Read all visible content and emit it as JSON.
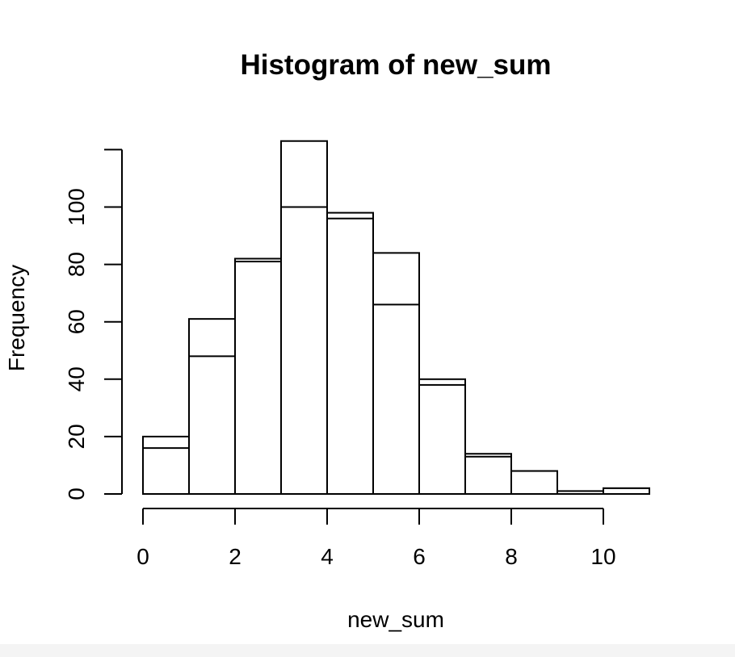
{
  "chart_data": {
    "type": "bar",
    "title": "Histogram of new_sum",
    "xlabel": "new_sum",
    "ylabel": "Frequency",
    "bin_edges": [
      0,
      1,
      2,
      3,
      4,
      5,
      6,
      7,
      8,
      9,
      10,
      11
    ],
    "xlim": [
      0,
      11
    ],
    "ylim": [
      0,
      123
    ],
    "x_ticks": [
      "0",
      "2",
      "4",
      "6",
      "8",
      "10"
    ],
    "y_ticks": [
      "0",
      "20",
      "40",
      "60",
      "80",
      "100"
    ],
    "grid": false,
    "series": [
      {
        "values": [
          20,
          61,
          82,
          123,
          98,
          84,
          40,
          14,
          8,
          1,
          2
        ]
      },
      {
        "values": [
          16,
          48,
          81,
          100,
          96,
          66,
          38,
          13,
          8,
          1,
          2
        ]
      }
    ]
  }
}
